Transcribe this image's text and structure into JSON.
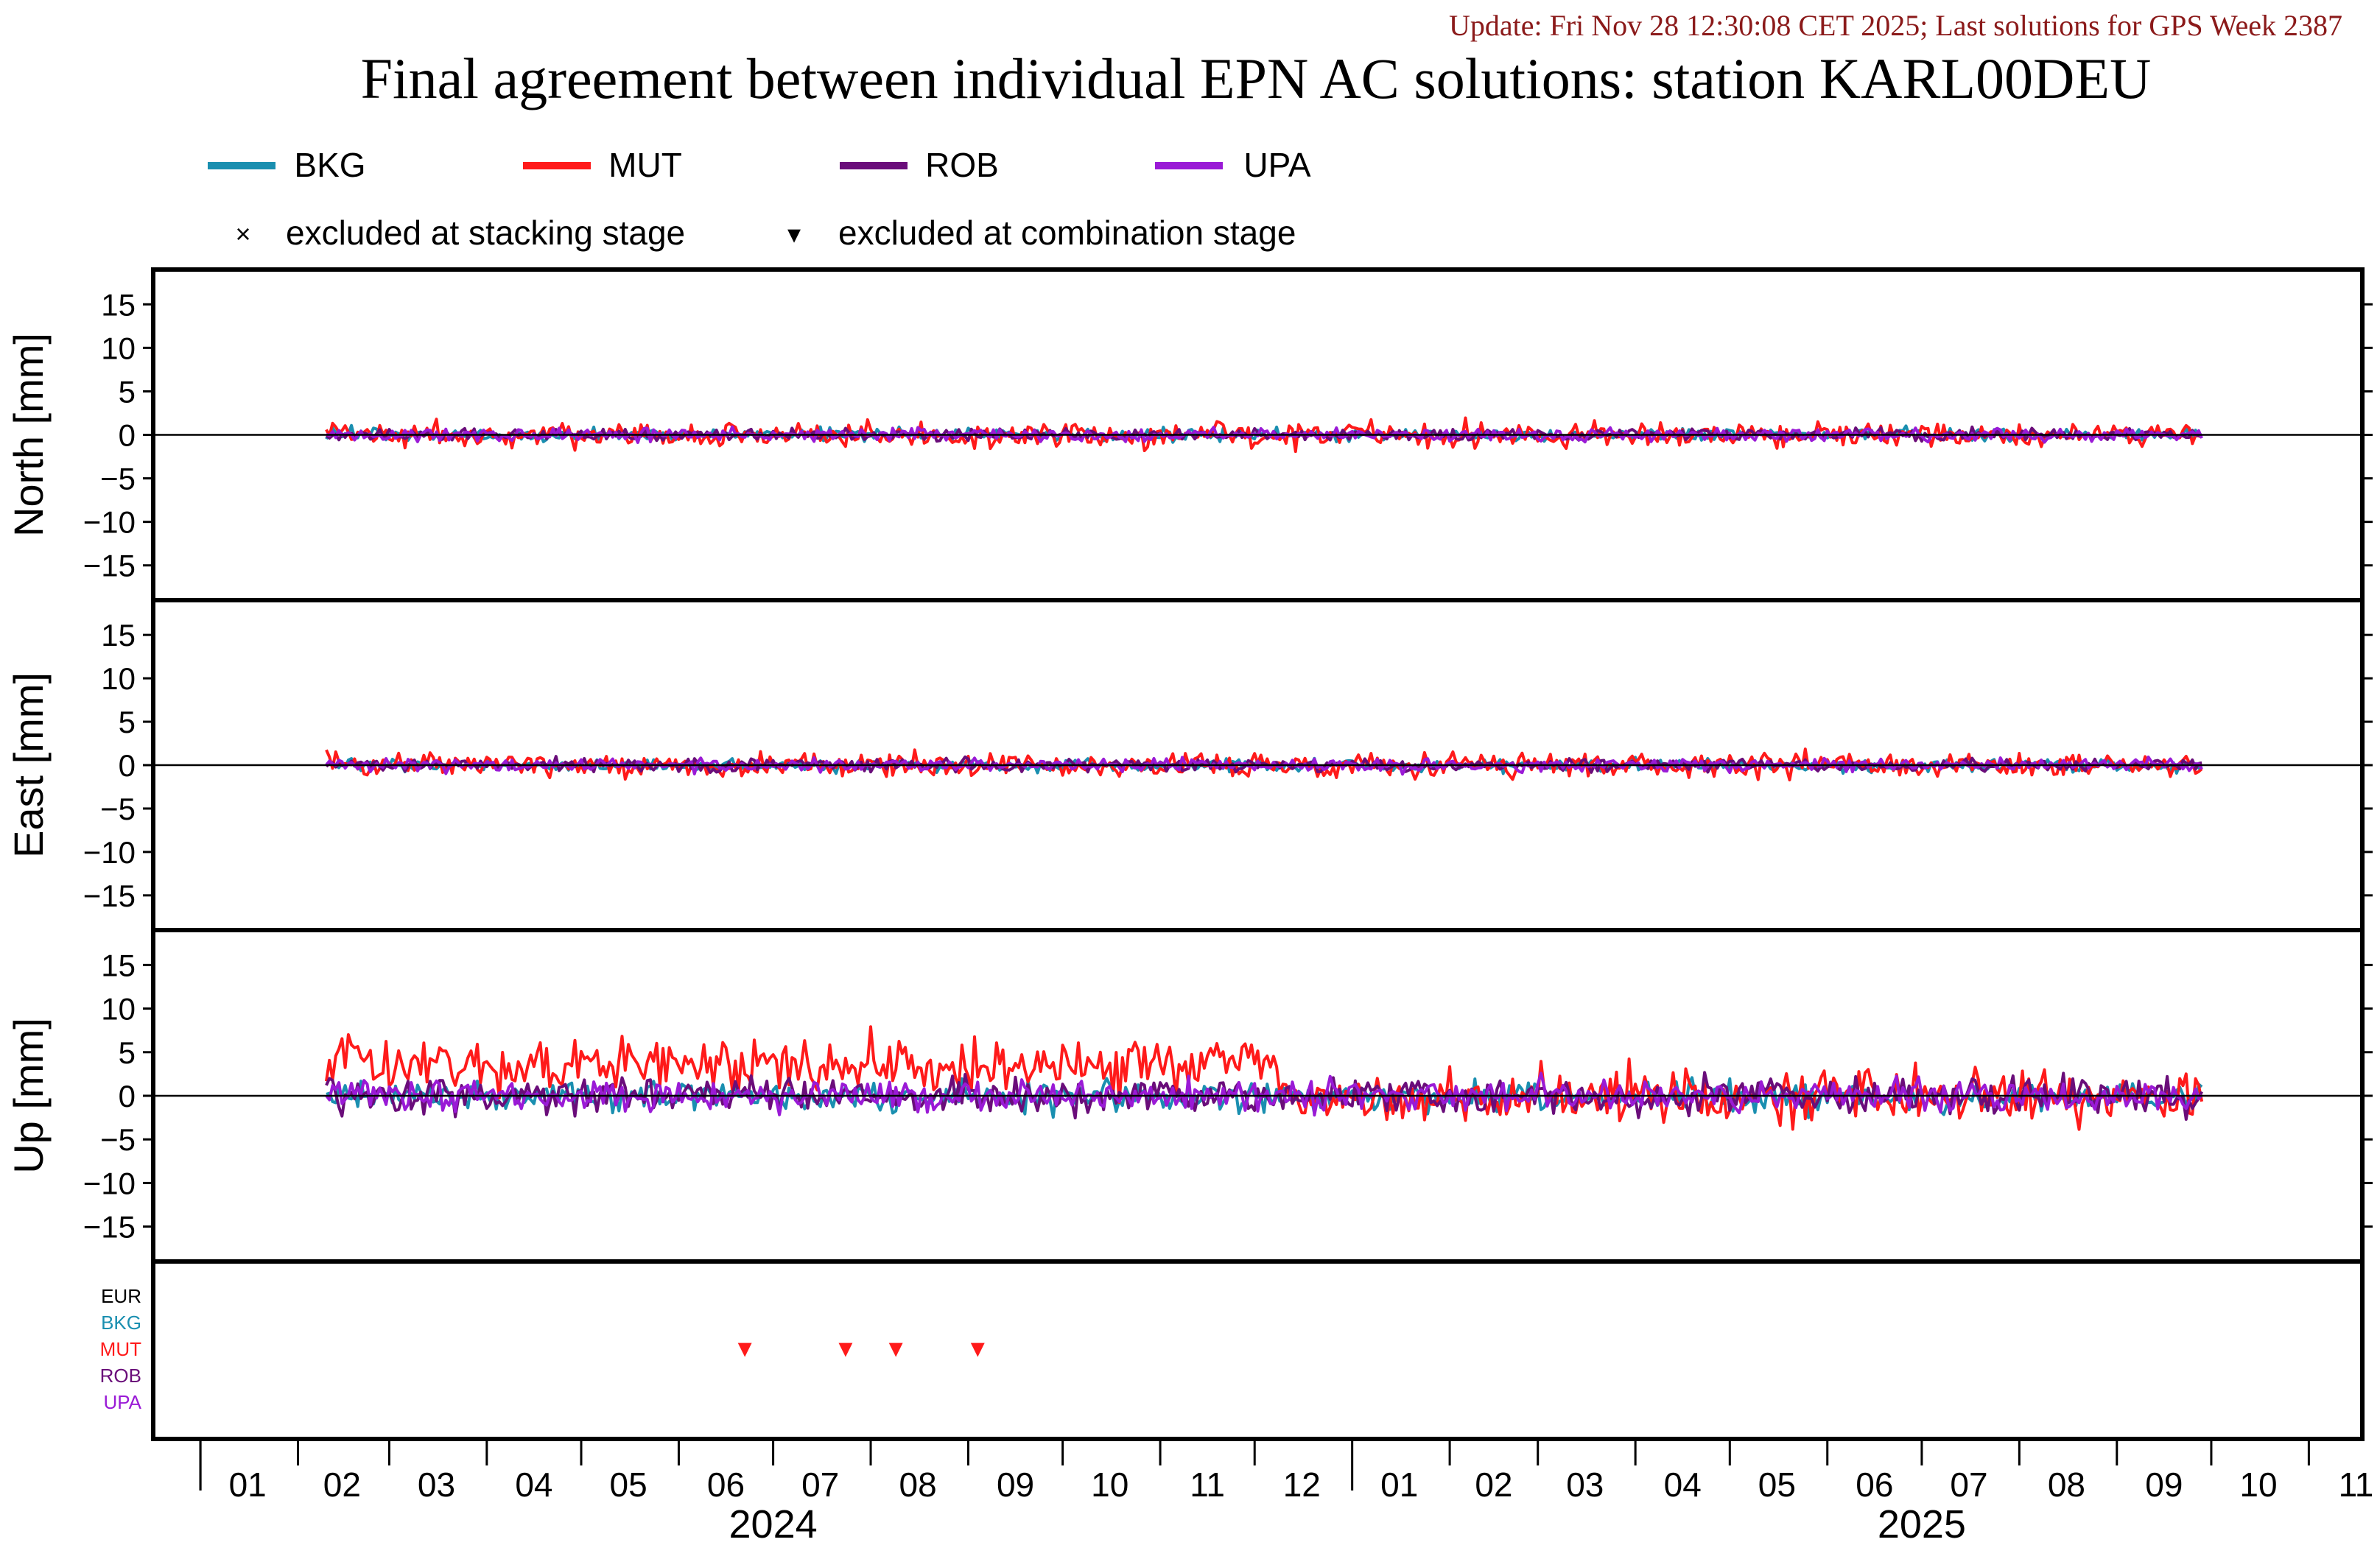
{
  "header": {
    "update_text": "Update: Fri Nov 28 12:30:08 CET 2025; Last solutions for GPS Week 2387",
    "title": "Final agreement between individual EPN AC solutions: station KARL00DEU"
  },
  "legend": {
    "series": [
      {
        "name": "BKG",
        "color": "#1a8fb0"
      },
      {
        "name": "MUT",
        "color": "#ff1a1a"
      },
      {
        "name": "ROB",
        "color": "#6a0d7a"
      },
      {
        "name": "UPA",
        "color": "#9a1ad6"
      }
    ],
    "markers": [
      {
        "symbol": "×",
        "label": "excluded at stacking stage"
      },
      {
        "symbol": "▾",
        "label": "excluded at combination stage"
      }
    ]
  },
  "colors": {
    "BKG": "#1a8fb0",
    "MUT": "#ff1a1a",
    "ROB": "#6a0d7a",
    "UPA": "#9a1ad6",
    "EUR": "#000000",
    "frame": "#000000"
  },
  "chart_data": [
    {
      "type": "line",
      "panel": "north",
      "ylabel": "North [mm]",
      "ylim": [
        -19,
        19
      ],
      "yticks": [
        15,
        10,
        5,
        0,
        -5,
        -10,
        -15
      ],
      "x_start": "2024-02-10",
      "x_end": "2025-09-28",
      "series": [
        {
          "name": "BKG",
          "amplitude_mm": 0.5,
          "seed": 11
        },
        {
          "name": "MUT",
          "amplitude_mm": 1.0,
          "seed": 12
        },
        {
          "name": "ROB",
          "amplitude_mm": 0.5,
          "seed": 13
        },
        {
          "name": "UPA",
          "amplitude_mm": 0.5,
          "seed": 14
        }
      ]
    },
    {
      "type": "line",
      "panel": "east",
      "ylabel": "East [mm]",
      "ylim": [
        -19,
        19
      ],
      "yticks": [
        15,
        10,
        5,
        0,
        -5,
        -10,
        -15
      ],
      "x_start": "2024-02-10",
      "x_end": "2025-09-28",
      "series": [
        {
          "name": "BKG",
          "amplitude_mm": 0.5,
          "seed": 21
        },
        {
          "name": "MUT",
          "amplitude_mm": 1.0,
          "seed": 22
        },
        {
          "name": "ROB",
          "amplitude_mm": 0.5,
          "seed": 23
        },
        {
          "name": "UPA",
          "amplitude_mm": 0.5,
          "seed": 24
        }
      ]
    },
    {
      "type": "line",
      "panel": "up",
      "ylabel": "Up [mm]",
      "ylim": [
        -19,
        19
      ],
      "yticks": [
        15,
        10,
        5,
        0,
        -5,
        -10,
        -15
      ],
      "x_start": "2024-02-10",
      "x_end": "2025-09-28",
      "series": [
        {
          "name": "BKG",
          "amplitude_mm": 1.2,
          "seed": 31
        },
        {
          "name": "MUT",
          "amplitude_mm": 2.2,
          "seed": 32,
          "offset_until": "2024-12-10",
          "offset_mm": 3.5
        },
        {
          "name": "ROB",
          "amplitude_mm": 1.4,
          "seed": 33
        },
        {
          "name": "UPA",
          "amplitude_mm": 1.2,
          "seed": 34
        }
      ]
    },
    {
      "type": "scatter",
      "panel": "exclusions",
      "rows": [
        "EUR",
        "BKG",
        "MUT",
        "ROB",
        "UPA"
      ],
      "points": [
        {
          "row": "MUT",
          "date": "2024-06-22",
          "symbol": "▾"
        },
        {
          "row": "MUT",
          "date": "2024-07-24",
          "symbol": "▾"
        },
        {
          "row": "MUT",
          "date": "2024-08-09",
          "symbol": "▾"
        },
        {
          "row": "MUT",
          "date": "2024-09-04",
          "symbol": "▾"
        }
      ]
    }
  ],
  "x_axis": {
    "x_min": "2023-12-17",
    "x_max": "2025-11-18",
    "month_labels": [
      {
        "label": "01",
        "date": "2024-01-16"
      },
      {
        "label": "02",
        "date": "2024-02-15"
      },
      {
        "label": "03",
        "date": "2024-03-16"
      },
      {
        "label": "04",
        "date": "2024-04-16"
      },
      {
        "label": "05",
        "date": "2024-05-16"
      },
      {
        "label": "06",
        "date": "2024-06-16"
      },
      {
        "label": "07",
        "date": "2024-07-16"
      },
      {
        "label": "08",
        "date": "2024-08-16"
      },
      {
        "label": "09",
        "date": "2024-09-16"
      },
      {
        "label": "10",
        "date": "2024-10-16"
      },
      {
        "label": "11",
        "date": "2024-11-16"
      },
      {
        "label": "12",
        "date": "2024-12-16"
      },
      {
        "label": "01",
        "date": "2025-01-16"
      },
      {
        "label": "02",
        "date": "2025-02-15"
      },
      {
        "label": "03",
        "date": "2025-03-16"
      },
      {
        "label": "04",
        "date": "2025-04-16"
      },
      {
        "label": "05",
        "date": "2025-05-16"
      },
      {
        "label": "06",
        "date": "2025-06-16"
      },
      {
        "label": "07",
        "date": "2025-07-16"
      },
      {
        "label": "08",
        "date": "2025-08-16"
      },
      {
        "label": "09",
        "date": "2025-09-16"
      },
      {
        "label": "10",
        "date": "2025-10-16"
      },
      {
        "label": "11",
        "date": "2025-11-16"
      }
    ],
    "year_labels": [
      {
        "label": "2024",
        "date": "2024-07-01"
      },
      {
        "label": "2025",
        "date": "2025-07-01"
      }
    ]
  }
}
